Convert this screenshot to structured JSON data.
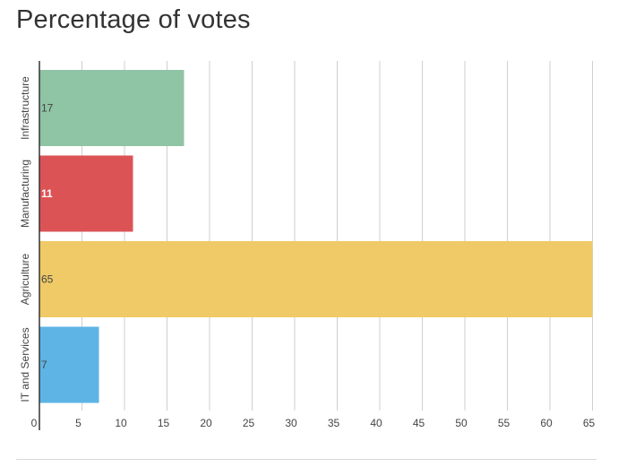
{
  "chart_data": {
    "type": "bar",
    "orientation": "horizontal",
    "title": "Percentage of votes",
    "categories": [
      "Infrastructure",
      "Manufacturing",
      "Agriculture",
      "IT and Services"
    ],
    "values": [
      17,
      11,
      65,
      7
    ],
    "data_labels": [
      "17",
      "11",
      "65",
      "7"
    ],
    "colors": [
      "#8fc4a5",
      "#dc5356",
      "#efca67",
      "#5eb4e4"
    ],
    "label_colors": [
      "#444444",
      "#ffffff",
      "#444444",
      "#444444"
    ],
    "x_ticks": [
      "0",
      "5",
      "10",
      "15",
      "20",
      "25",
      "30",
      "35",
      "40",
      "45",
      "50",
      "55",
      "60",
      "65"
    ],
    "xlim": [
      0,
      66
    ],
    "grid": true,
    "legend": "none",
    "xlabel": "",
    "ylabel": ""
  }
}
